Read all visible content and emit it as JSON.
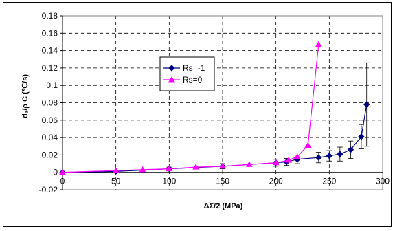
{
  "chart_data": {
    "type": "line",
    "xlabel": "ΔΣ/2 (MPa)",
    "ylabel": "d₁/ρ C (℃/s)",
    "xlim": [
      0,
      300
    ],
    "ylim": [
      -0.02,
      0.18
    ],
    "x_ticks": [
      "0",
      "50",
      "100",
      "150",
      "200",
      "250",
      "300"
    ],
    "y_ticks": [
      "-0.02",
      "0",
      "0.02",
      "0.04",
      "0.06",
      "0.08",
      "0.1",
      "0.12",
      "0.14",
      "0.16",
      "0.18"
    ],
    "grid": "dashed",
    "legend_placement": "center-left",
    "series": [
      {
        "name": "Rs=-1",
        "color": "#000080",
        "marker": "diamond",
        "x": [
          0,
          50,
          100,
          150,
          200,
          210,
          220,
          240,
          250,
          260,
          270,
          280,
          285
        ],
        "y": [
          0,
          0.001,
          0.004,
          0.007,
          0.011,
          0.012,
          0.015,
          0.017,
          0.019,
          0.021,
          0.026,
          0.041,
          0.078
        ],
        "err": [
          0,
          0.001,
          0.002,
          0.003,
          0.004,
          0.004,
          0.005,
          0.006,
          0.006,
          0.008,
          0.01,
          0.014,
          0.048
        ]
      },
      {
        "name": "Rs=0",
        "color": "#ff00ff",
        "marker": "triangle",
        "x": [
          0,
          50,
          75,
          100,
          125,
          150,
          175,
          200,
          212,
          220,
          230,
          240
        ],
        "y": [
          0,
          0.002,
          0.003,
          0.004,
          0.006,
          0.007,
          0.009,
          0.011,
          0.014,
          0.018,
          0.031,
          0.147
        ]
      }
    ]
  }
}
